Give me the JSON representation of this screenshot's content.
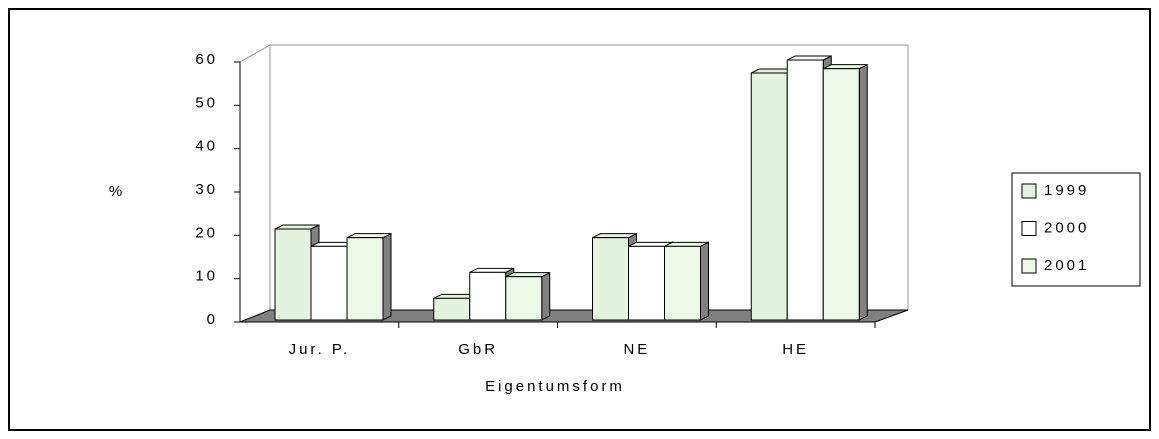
{
  "chart_data": {
    "type": "bar",
    "ylabel": "%",
    "xlabel": "Eigentumsform",
    "categories": [
      "Jur. P.",
      "GbR",
      "NE",
      "HE"
    ],
    "series": [
      {
        "name": "1999",
        "color": "#e4f3df",
        "values": [
          21,
          5,
          19,
          57
        ]
      },
      {
        "name": "2000",
        "color": "#ffffff",
        "values": [
          17,
          11,
          17,
          60
        ]
      },
      {
        "name": "2001",
        "color": "#ecf8e8",
        "values": [
          19,
          10,
          17,
          58
        ]
      }
    ],
    "ylim": [
      0,
      60
    ],
    "yticks": [
      0,
      10,
      20,
      30,
      40,
      50,
      60
    ],
    "legend": "right"
  }
}
